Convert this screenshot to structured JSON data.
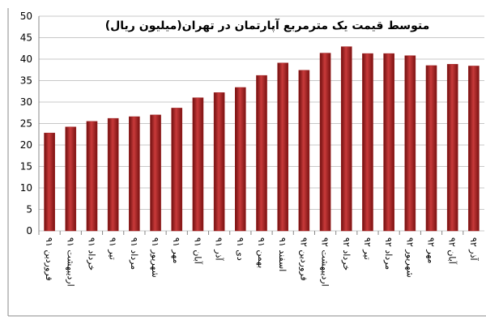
{
  "chart_data": {
    "type": "bar",
    "title": "متوسط قیمت یک مترمربع آپارتمان در تهران(میلیون ریال)",
    "categories": [
      "فروردین ۹۱",
      "اردیبهشت ۹۱",
      "خرداد ۹۱",
      "تیر ۹۱",
      "مرداد ۹۱",
      "شهریور ۹۱",
      "مهر ۹۱",
      "آبان ۹۱",
      "آذر ۹۱",
      "دی ۹۱",
      "بهمن ۹۱",
      "اسفند ۹۱",
      "فروردین ۹۲",
      "اردیبهشت ۹۲",
      "خرداد ۹۲",
      "تیر ۹۲",
      "مرداد ۹۲",
      "شهریور ۹۲",
      "مهر ۹۲",
      "آبان ۹۲",
      "آذر ۹۲"
    ],
    "values": [
      22.8,
      24.2,
      25.5,
      26.2,
      26.6,
      27.0,
      28.6,
      31.0,
      32.2,
      33.4,
      36.2,
      39.1,
      37.4,
      41.4,
      42.9,
      41.3,
      41.3,
      40.8,
      38.5,
      38.8,
      38.4
    ],
    "color": "#9e1b1b",
    "ylim": [
      0,
      50
    ],
    "yticks": [
      0,
      5,
      10,
      15,
      20,
      25,
      30,
      35,
      40,
      45,
      50
    ],
    "grid": true
  }
}
